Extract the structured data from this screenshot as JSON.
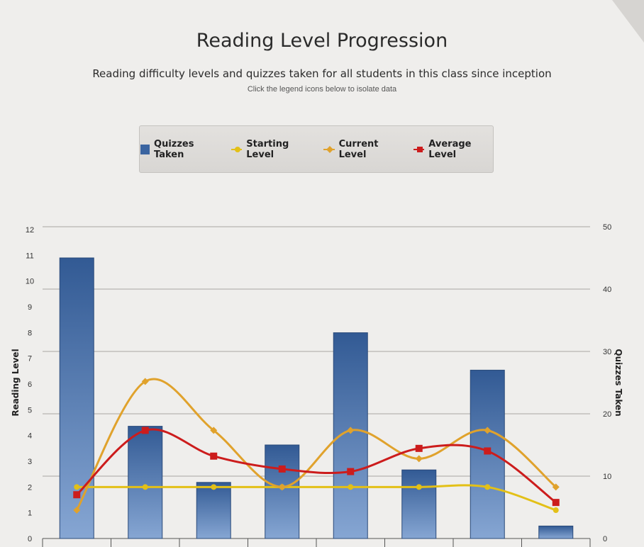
{
  "header": {
    "title": "Reading Level Progression",
    "subtitle": "Reading difficulty levels and quizzes taken for all students in this class since inception",
    "hint": "Click the legend icons below to isolate data"
  },
  "legend": {
    "items": [
      {
        "label": "Quizzes Taken",
        "color": "#3a64a0",
        "icon": "bar-square-icon"
      },
      {
        "label": "Starting Level",
        "color": "#e3c017",
        "icon": "line-circle-icon"
      },
      {
        "label": "Current Level",
        "color": "#e0a22c",
        "icon": "line-diamond-icon"
      },
      {
        "label": "Average Level",
        "color": "#cc1c1c",
        "icon": "line-square-icon"
      }
    ]
  },
  "chart_data": {
    "type": "bar",
    "ylabel_left": "Reading Level",
    "ylabel_right": "Quizzes Taken",
    "left_ticks": [
      "0",
      "1",
      "2",
      "3",
      "4",
      "5",
      "6",
      "7",
      "8",
      "9",
      "10",
      "11",
      "12"
    ],
    "right_ticks": [
      "0",
      "10",
      "20",
      "30",
      "40",
      "50"
    ],
    "ylim_left": [
      0,
      12
    ],
    "ylim_right": [
      0,
      50
    ],
    "grid": true,
    "series": [
      {
        "name": "Quizzes Taken",
        "axis": "right",
        "type": "bar",
        "color": "#3a64a0",
        "values": [
          45,
          18,
          9,
          15,
          33,
          11,
          27,
          2
        ]
      },
      {
        "name": "Starting Level",
        "axis": "left",
        "type": "line",
        "color": "#e3c017",
        "values": [
          2.0,
          2.0,
          2.0,
          2.0,
          2.0,
          2.0,
          2.0,
          1.1
        ]
      },
      {
        "name": "Current Level",
        "axis": "left",
        "type": "line",
        "color": "#e0a22c",
        "values": [
          1.1,
          6.1,
          4.2,
          2.0,
          4.2,
          3.1,
          4.2,
          2.0
        ]
      },
      {
        "name": "Average Level",
        "axis": "left",
        "type": "line",
        "color": "#cc1c1c",
        "values": [
          1.7,
          4.2,
          3.2,
          2.7,
          2.6,
          3.5,
          3.4,
          1.4
        ]
      }
    ]
  }
}
